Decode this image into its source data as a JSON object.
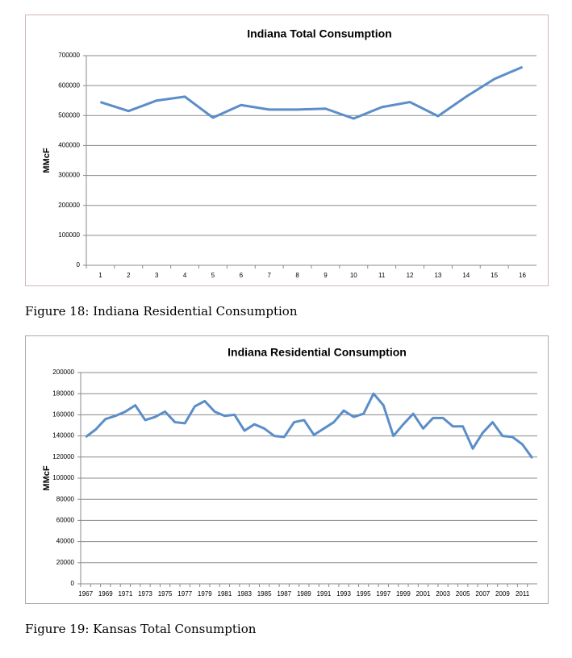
{
  "captions": [
    "Figure 18: Indiana Residential Consumption",
    "Figure 19: Kansas Total Consumption"
  ],
  "chart_data": [
    {
      "type": "line",
      "title": "Indiana Total Consumption",
      "y_label": "MMcF",
      "color": "#5b8ec8",
      "grid": true,
      "categories": [
        "1",
        "2",
        "3",
        "4",
        "5",
        "6",
        "7",
        "8",
        "9",
        "10",
        "11",
        "12",
        "13",
        "14",
        "15",
        "16"
      ],
      "values": [
        545000,
        515000,
        550000,
        563000,
        493000,
        535000,
        520000,
        520000,
        523000,
        490000,
        528000,
        545000,
        498000,
        563000,
        622000,
        662000
      ],
      "ylim": [
        0,
        700000
      ],
      "yticks": [
        0,
        100000,
        200000,
        300000,
        400000,
        500000,
        600000,
        700000
      ]
    },
    {
      "type": "line",
      "title": "Indiana Residential Consumption",
      "y_label": "MMcF",
      "color": "#5b8ec8",
      "grid": true,
      "categories": [
        "1967",
        null,
        "1969",
        null,
        "1971",
        null,
        "1973",
        null,
        "1975",
        null,
        "1977",
        null,
        "1979",
        null,
        "1981",
        null,
        "1983",
        null,
        "1985",
        null,
        "1987",
        null,
        "1989",
        null,
        "1991",
        null,
        "1993",
        null,
        "1995",
        null,
        "1997",
        null,
        "1999",
        null,
        "2001",
        null,
        "2003",
        null,
        "2005",
        null,
        "2007",
        null,
        "2009",
        null,
        "2011",
        null
      ],
      "values": [
        139000,
        146000,
        156000,
        159000,
        163000,
        169000,
        155000,
        158000,
        163000,
        153000,
        152000,
        168000,
        173000,
        163000,
        159000,
        160000,
        145000,
        151000,
        147000,
        140000,
        139000,
        153000,
        155000,
        141000,
        147000,
        153000,
        164000,
        158000,
        161000,
        180000,
        169000,
        140000,
        151000,
        161000,
        147000,
        157000,
        157000,
        149000,
        149000,
        128000,
        143000,
        153000,
        140000,
        139000,
        132000,
        119000
      ],
      "ylim": [
        0,
        200000
      ],
      "yticks": [
        0,
        20000,
        40000,
        60000,
        80000,
        100000,
        120000,
        140000,
        160000,
        180000,
        200000
      ]
    }
  ]
}
